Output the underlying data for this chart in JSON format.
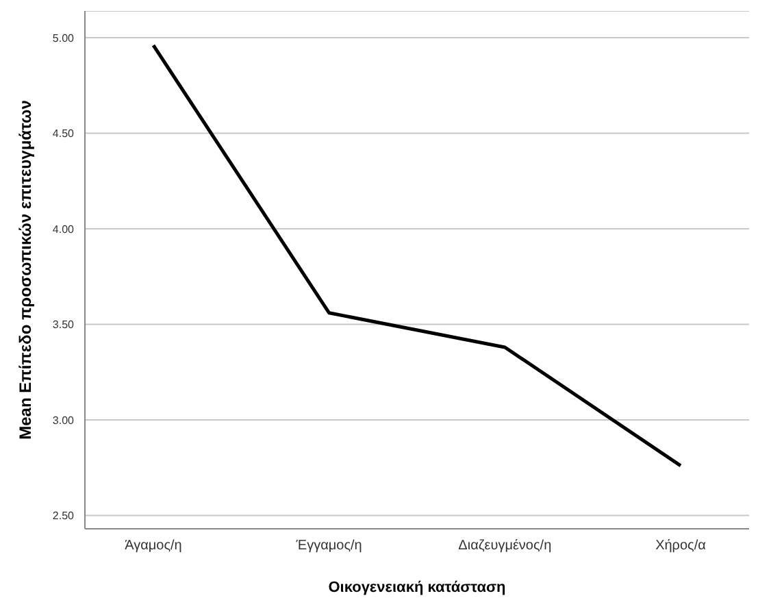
{
  "chart_data": {
    "type": "line",
    "xlabel": "Οικογενειακή κατάσταση",
    "ylabel": "Mean Επίπεδο προσωπικών επιτευγμάτων",
    "categories": [
      "Άγαμος/η",
      "Έγγαμος/η",
      "Διαζευγμένος/η",
      "Χήρος/α"
    ],
    "series": [
      {
        "color": "#000000",
        "values": [
          4.96,
          3.56,
          3.38,
          2.76
        ]
      }
    ],
    "ylim": [
      2.43,
      5.14
    ],
    "yticks": [
      {
        "value": 2.5,
        "label": "2.50"
      },
      {
        "value": 3,
        "label": "3.00"
      },
      {
        "value": 3.5,
        "label": "3.50"
      },
      {
        "value": 4,
        "label": "4.00"
      },
      {
        "value": 4.5,
        "label": "4.50"
      },
      {
        "value": 5,
        "label": "5.00"
      }
    ],
    "grid": "y",
    "marker": "none",
    "line_style": "solid",
    "legend": false
  }
}
